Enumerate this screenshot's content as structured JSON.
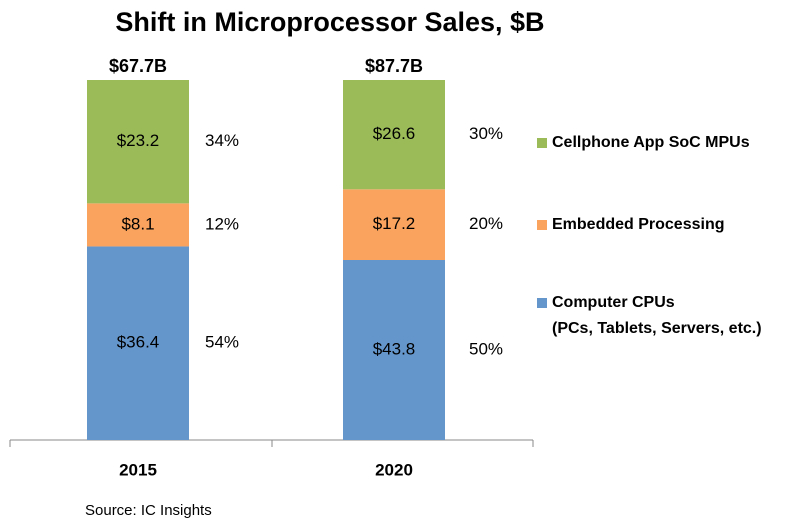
{
  "chart_data": {
    "type": "stacked_bar_100",
    "title": "Shift in Microprocessor Sales, $B",
    "categories": [
      "2015",
      "2020"
    ],
    "totals": [
      67.7,
      87.7
    ],
    "total_labels": [
      "$67.7B",
      "$87.7B"
    ],
    "series": [
      {
        "name": "Computer CPUs\n(PCs, Tablets, Servers, etc.)",
        "color": "#6596cb",
        "values": [
          36.4,
          43.8
        ],
        "value_labels": [
          "$36.4",
          "$43.8"
        ],
        "shares": [
          54,
          50
        ],
        "share_labels": [
          "54%",
          "50%"
        ]
      },
      {
        "name": "Embedded Processing",
        "color": "#f9a35e",
        "values": [
          8.1,
          17.2
        ],
        "value_labels": [
          "$8.1",
          "$17.2"
        ],
        "shares": [
          12,
          20
        ],
        "share_labels": [
          "12%",
          "20%"
        ]
      },
      {
        "name": "Cellphone App SoC MPUs",
        "color": "#9bbb59",
        "values": [
          23.2,
          26.6
        ],
        "value_labels": [
          "$23.2",
          "$26.6"
        ],
        "shares": [
          34,
          30
        ],
        "share_labels": [
          "34%",
          "30%"
        ]
      }
    ],
    "source": "Source:  IC Insights"
  }
}
